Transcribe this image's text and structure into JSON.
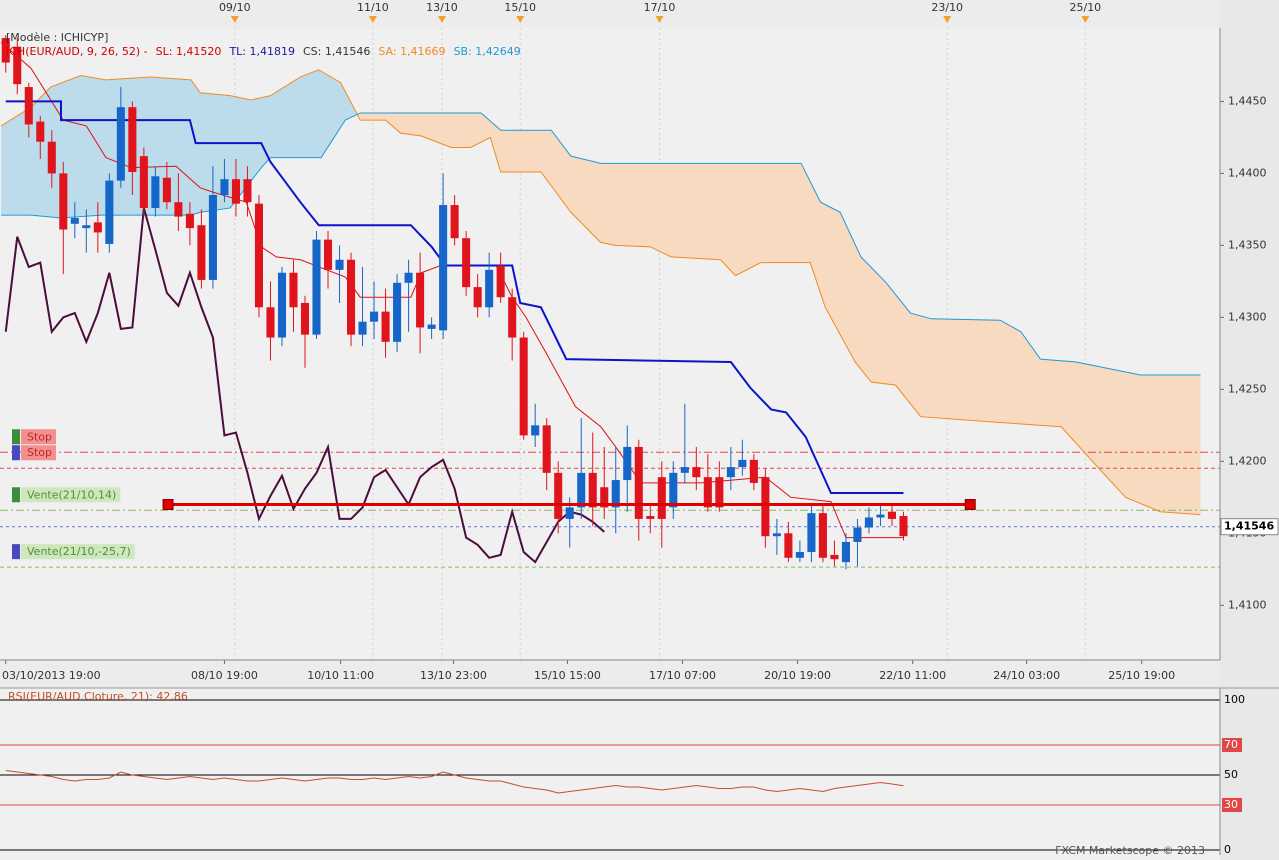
{
  "chart_data": [
    {
      "type": "candlestick",
      "legend_title": "[Modèle : ICHICYP]",
      "legend": [
        {
          "text": "ICH(EUR/AUD, 9, 26, 52) -",
          "color": "#d00000"
        },
        {
          "text": "SL: 1,41520",
          "color": "#d00000"
        },
        {
          "text": "TL: 1,41819",
          "color": "#1a1aa0"
        },
        {
          "text": "CS: 1,41546",
          "color": "#333333"
        },
        {
          "text": "SA: 1,41669",
          "color": "#f08a24"
        },
        {
          "text": "SB: 1,42649",
          "color": "#1e9ad6"
        }
      ],
      "top_labels": [
        {
          "value": 19.9,
          "label": "09/10"
        },
        {
          "value": 31.9,
          "label": "11/10"
        },
        {
          "value": 37.9,
          "label": "13/10"
        },
        {
          "value": 44.7,
          "label": "15/10"
        },
        {
          "value": 56.8,
          "label": "17/10"
        },
        {
          "value": 81.8,
          "label": "23/10"
        },
        {
          "value": 93.8,
          "label": "25/10"
        }
      ],
      "xlim": [
        -0.5,
        105.5
      ],
      "xticks": [
        {
          "value": 0,
          "label": "03/10/2013 19:00"
        },
        {
          "value": 19,
          "label": "08/10 19:00"
        },
        {
          "value": 29.1,
          "label": "10/10 11:00"
        },
        {
          "value": 38.9,
          "label": "13/10 23:00"
        },
        {
          "value": 48.8,
          "label": "15/10 15:00"
        },
        {
          "value": 58.8,
          "label": "17/10 07:00"
        },
        {
          "value": 68.8,
          "label": "20/10 19:00"
        },
        {
          "value": 78.8,
          "label": "22/10 11:00"
        },
        {
          "value": 88.7,
          "label": "24/10 03:00"
        },
        {
          "value": 98.7,
          "label": "25/10 19:00"
        }
      ],
      "ylim": [
        1.4062,
        1.4501
      ],
      "yticks": [
        {
          "value": 1.41,
          "label": "1,4100"
        },
        {
          "value": 1.415,
          "label": "1,4150"
        },
        {
          "value": 1.42,
          "label": "1,4200"
        },
        {
          "value": 1.425,
          "label": "1,4250"
        },
        {
          "value": 1.43,
          "label": "1,4300"
        },
        {
          "value": 1.435,
          "label": "1,4350"
        },
        {
          "value": 1.44,
          "label": "1,4400"
        },
        {
          "value": 1.445,
          "label": "1,4450"
        }
      ],
      "up_color": "#1566c8",
      "down_color": "#e0141c",
      "x": [
        0,
        1,
        2,
        3,
        4,
        5,
        6,
        7,
        8,
        9,
        10,
        11,
        12,
        13,
        14,
        15,
        16,
        17,
        18,
        19,
        20,
        21,
        22,
        23,
        24,
        25,
        26,
        27,
        28,
        29,
        30,
        31,
        32,
        33,
        34,
        35,
        36,
        37,
        38,
        39,
        40,
        41,
        42,
        43,
        44,
        45,
        46,
        47,
        48,
        49,
        50,
        51,
        52,
        53,
        54,
        55,
        56,
        57,
        58,
        59,
        60,
        61,
        62,
        63,
        64,
        65,
        66,
        67,
        68,
        69,
        70,
        71,
        72,
        73,
        74,
        75,
        76,
        77,
        78
      ],
      "open": [
        1.4494,
        1.4488,
        1.446,
        1.4436,
        1.4422,
        1.44,
        1.4365,
        1.4362,
        1.4366,
        1.4351,
        1.4395,
        1.4446,
        1.4412,
        1.4376,
        1.4397,
        1.438,
        1.4372,
        1.4364,
        1.4326,
        1.4385,
        1.4396,
        1.4396,
        1.4379,
        1.4307,
        1.4286,
        1.4331,
        1.431,
        1.4288,
        1.4354,
        1.4333,
        1.434,
        1.4288,
        1.4297,
        1.4304,
        1.4283,
        1.4324,
        1.4331,
        1.4292,
        1.4291,
        1.4378,
        1.4355,
        1.4321,
        1.4307,
        1.4336,
        1.4314,
        1.4286,
        1.4218,
        1.4225,
        1.4192,
        1.416,
        1.4168,
        1.4192,
        1.4182,
        1.4168,
        1.4187,
        1.421,
        1.4162,
        1.4189,
        1.4168,
        1.4192,
        1.4196,
        1.4189,
        1.4189,
        1.4189,
        1.4196,
        1.4201,
        1.4189,
        1.4148,
        1.415,
        1.4133,
        1.4137,
        1.4164,
        1.4135,
        1.413,
        1.4144,
        1.4154,
        1.4161,
        1.4165,
        1.4162
      ],
      "high": [
        1.4496,
        1.4494,
        1.4463,
        1.444,
        1.443,
        1.4408,
        1.438,
        1.4375,
        1.438,
        1.44,
        1.446,
        1.445,
        1.4418,
        1.4405,
        1.4408,
        1.44,
        1.438,
        1.4375,
        1.4405,
        1.441,
        1.441,
        1.4405,
        1.4385,
        1.4325,
        1.4335,
        1.434,
        1.4315,
        1.436,
        1.436,
        1.435,
        1.4345,
        1.4335,
        1.4325,
        1.432,
        1.433,
        1.434,
        1.4345,
        1.43,
        1.44,
        1.4385,
        1.436,
        1.433,
        1.4345,
        1.4345,
        1.432,
        1.429,
        1.424,
        1.423,
        1.42,
        1.4175,
        1.423,
        1.422,
        1.421,
        1.421,
        1.4225,
        1.4215,
        1.417,
        1.42,
        1.42,
        1.424,
        1.421,
        1.4205,
        1.42,
        1.421,
        1.4215,
        1.4205,
        1.4195,
        1.416,
        1.4158,
        1.4145,
        1.417,
        1.417,
        1.4145,
        1.415,
        1.416,
        1.4168,
        1.417,
        1.417,
        1.4165
      ],
      "low": [
        1.447,
        1.4455,
        1.4425,
        1.441,
        1.439,
        1.433,
        1.4355,
        1.4345,
        1.4345,
        1.4345,
        1.439,
        1.4385,
        1.437,
        1.437,
        1.4375,
        1.436,
        1.435,
        1.432,
        1.432,
        1.438,
        1.437,
        1.437,
        1.43,
        1.427,
        1.428,
        1.429,
        1.4265,
        1.4285,
        1.432,
        1.431,
        1.428,
        1.428,
        1.4285,
        1.4272,
        1.4276,
        1.429,
        1.4275,
        1.4285,
        1.4285,
        1.435,
        1.4315,
        1.43,
        1.43,
        1.431,
        1.427,
        1.4215,
        1.421,
        1.418,
        1.415,
        1.414,
        1.416,
        1.4155,
        1.416,
        1.415,
        1.4165,
        1.4145,
        1.415,
        1.414,
        1.416,
        1.4185,
        1.418,
        1.4165,
        1.4165,
        1.418,
        1.419,
        1.418,
        1.414,
        1.4135,
        1.413,
        1.413,
        1.413,
        1.413,
        1.4127,
        1.4125,
        1.4127,
        1.415,
        1.4155,
        1.4155,
        1.4145
      ],
      "close": [
        1.4477,
        1.4462,
        1.4434,
        1.4422,
        1.44,
        1.4361,
        1.4369,
        1.4364,
        1.4359,
        1.4395,
        1.4446,
        1.4401,
        1.4376,
        1.4398,
        1.438,
        1.437,
        1.4362,
        1.4326,
        1.4385,
        1.4396,
        1.4379,
        1.438,
        1.4307,
        1.4286,
        1.4331,
        1.4307,
        1.4288,
        1.4354,
        1.4333,
        1.434,
        1.4288,
        1.4297,
        1.4304,
        1.4283,
        1.4324,
        1.4331,
        1.4293,
        1.4295,
        1.4378,
        1.4355,
        1.4321,
        1.4307,
        1.4333,
        1.4314,
        1.4286,
        1.4218,
        1.4225,
        1.4192,
        1.416,
        1.4168,
        1.4192,
        1.4168,
        1.4168,
        1.4187,
        1.421,
        1.416,
        1.416,
        1.416,
        1.4192,
        1.4196,
        1.4189,
        1.4168,
        1.4168,
        1.4196,
        1.4201,
        1.4185,
        1.4148,
        1.415,
        1.4133,
        1.4137,
        1.4164,
        1.4133,
        1.4132,
        1.4144,
        1.4154,
        1.4161,
        1.4163,
        1.416,
        1.4148
      ],
      "cloud_up": "#bcdcec",
      "cloud_down": "#f7dac0",
      "lines": [
        {
          "color": "#f08a24",
          "width": 1,
          "x": [
            -0.4,
            2.2,
            3.9,
            6.5,
            8.7,
            12.6,
            16.1,
            16.9,
            19.5,
            21.3,
            23,
            25.6,
            27.2,
            29.1,
            30.8,
            33,
            34.3,
            36.1,
            38.7,
            40.4,
            42.1,
            43,
            46.5,
            49.1,
            51.7,
            53,
            56,
            57.8,
            62.1,
            63.4,
            65.6,
            69.9,
            71.2,
            73.8,
            75.2,
            77.3,
            79.5,
            86.4,
            91.7,
            95.1,
            97.3,
            100.3,
            103.8
          ],
          "values": [
            1.4433,
            1.4446,
            1.446,
            1.4468,
            1.4465,
            1.4467,
            1.4465,
            1.4456,
            1.4454,
            1.4451,
            1.4454,
            1.4467,
            1.4472,
            1.4463,
            1.4437,
            1.4437,
            1.4428,
            1.4426,
            1.4418,
            1.4418,
            1.4425,
            1.4401,
            1.4401,
            1.4373,
            1.4352,
            1.435,
            1.4349,
            1.4342,
            1.434,
            1.4329,
            1.4338,
            1.4338,
            1.4307,
            1.4269,
            1.4255,
            1.4253,
            1.4231,
            1.4227,
            1.4224,
            1.4194,
            1.4175,
            1.4165,
            1.4163
          ]
        },
        {
          "color": "#1e9ad6",
          "width": 1,
          "x": [
            -0.4,
            2.2,
            4.8,
            8.3,
            12.6,
            16.1,
            16.9,
            19.5,
            22.2,
            23,
            27.4,
            29.5,
            30.8,
            34.3,
            41.3,
            43,
            47.4,
            49.1,
            51.7,
            69.1,
            70.8,
            72.5,
            74.3,
            76.5,
            78.6,
            80.4,
            86.4,
            88.2,
            89.9,
            93,
            98.6,
            103.8
          ],
          "values": [
            1.4371,
            1.4371,
            1.4369,
            1.4371,
            1.4371,
            1.4371,
            1.4373,
            1.4376,
            1.4404,
            1.4411,
            1.4411,
            1.4437,
            1.4442,
            1.4442,
            1.4442,
            1.443,
            1.443,
            1.4412,
            1.4407,
            1.4407,
            1.438,
            1.4373,
            1.4342,
            1.4324,
            1.4303,
            1.4299,
            1.4298,
            1.429,
            1.4271,
            1.4269,
            1.426,
            1.426
          ]
        },
        {
          "color": "#4a0d3c",
          "width": 2,
          "x": [
            0,
            1,
            2,
            3,
            4,
            5,
            6,
            7,
            8,
            9,
            10,
            11,
            12,
            13,
            14,
            15,
            16,
            17,
            18,
            19,
            20,
            21,
            22,
            23,
            24,
            25,
            26,
            27,
            28,
            29,
            30,
            31,
            32,
            33,
            34,
            35,
            36,
            37,
            38,
            39,
            40,
            41,
            42,
            43,
            44,
            45,
            46,
            47,
            48,
            49,
            50,
            51,
            52
          ],
          "values": [
            1.429,
            1.4356,
            1.4335,
            1.4338,
            1.429,
            1.43,
            1.4303,
            1.4283,
            1.4303,
            1.4331,
            1.4292,
            1.4293,
            1.4376,
            1.4347,
            1.4317,
            1.4308,
            1.4331,
            1.4307,
            1.4286,
            1.4218,
            1.422,
            1.4192,
            1.416,
            1.4176,
            1.419,
            1.4167,
            1.4181,
            1.4192,
            1.421,
            1.416,
            1.416,
            1.4168,
            1.4189,
            1.4194,
            1.4182,
            1.417,
            1.4189,
            1.4196,
            1.4201,
            1.4181,
            1.4147,
            1.4142,
            1.4133,
            1.4135,
            1.4165,
            1.4137,
            1.413,
            1.4144,
            1.4158,
            1.4165,
            1.4163,
            1.4158,
            1.4151
          ]
        },
        {
          "color": "#e01010",
          "width": 1,
          "x": [
            -0.4,
            2.2,
            5,
            7,
            8.7,
            10.9,
            14.8,
            16.9,
            18,
            20.9,
            22.2,
            23.5,
            25.6,
            29.5,
            30.8,
            35.2,
            36.1,
            37.8,
            42.6,
            44,
            45.2,
            46.9,
            49.5,
            51.7,
            53,
            55.2,
            60.4,
            66,
            68.2,
            71.7,
            73,
            78
          ],
          "values": [
            1.4491,
            1.4473,
            1.4437,
            1.4433,
            1.4411,
            1.4404,
            1.4405,
            1.439,
            1.4387,
            1.438,
            1.4349,
            1.4342,
            1.434,
            1.4328,
            1.4314,
            1.4314,
            1.4331,
            1.4336,
            1.4336,
            1.4314,
            1.43,
            1.4276,
            1.4238,
            1.4224,
            1.421,
            1.4185,
            1.4185,
            1.4189,
            1.4175,
            1.4172,
            1.4147,
            1.4147
          ]
        },
        {
          "color": "#0a14c8",
          "width": 2,
          "x": [
            0,
            4.8,
            4.8,
            16,
            16.5,
            22.2,
            23,
            25.6,
            27.2,
            35.2,
            37,
            38.2,
            44,
            44.7,
            46.5,
            48.7,
            63,
            64.7,
            66.5,
            67.8,
            69.5,
            71.7,
            78
          ],
          "values": [
            1.445,
            1.445,
            1.4437,
            1.4437,
            1.4421,
            1.4421,
            1.4408,
            1.438,
            1.4364,
            1.4364,
            1.4349,
            1.4336,
            1.4336,
            1.431,
            1.4307,
            1.4271,
            1.4269,
            1.4251,
            1.4236,
            1.4234,
            1.4217,
            1.4178,
            1.4178
          ]
        }
      ],
      "orders": [
        {
          "label": "Stop",
          "value": 1.42063,
          "color": "#e04848",
          "marker": "#3c8c3c",
          "label_bg": "#f29090",
          "text_color": "#c02828",
          "style": "dashdot"
        },
        {
          "label": "Stop",
          "value": 1.41952,
          "color": "#e04848",
          "marker": "#4848c0",
          "label_bg": "#f29090",
          "text_color": "#c02828",
          "style": "dashed"
        },
        {
          "label": "Vente(21/10,14)",
          "value": 1.4166,
          "color": "#8cb860",
          "marker": "#3c8c3c",
          "label_bg": "#cde8bd",
          "text_color": "#5a8a3a",
          "style": "dashdot"
        },
        {
          "label": "Vente(21/10,-25,7)",
          "value": 1.41265,
          "color": "#8cb860",
          "marker": "#4848c0",
          "label_bg": "#cde8bd",
          "text_color": "#5a8a3a",
          "style": "dashed"
        }
      ],
      "position_line": {
        "value": 1.417,
        "x": [
          14.1,
          83.8
        ],
        "color": "#e00000"
      },
      "price_line": {
        "value": 1.41546,
        "label": "1,41546",
        "color": "#5a7ae0"
      }
    },
    {
      "type": "line",
      "title": "RSI(EUR/AUD.Cloture, 21): 42,86",
      "xlim": [
        -0.5,
        105.5
      ],
      "x": [
        0,
        1,
        2,
        3,
        4,
        5,
        6,
        7,
        8,
        9,
        10,
        11,
        12,
        13,
        14,
        15,
        16,
        17,
        18,
        19,
        20,
        21,
        22,
        23,
        24,
        25,
        26,
        27,
        28,
        29,
        30,
        31,
        32,
        33,
        34,
        35,
        36,
        37,
        38,
        39,
        40,
        41,
        42,
        43,
        44,
        45,
        46,
        47,
        48,
        49,
        50,
        51,
        52,
        53,
        54,
        55,
        56,
        57,
        58,
        59,
        60,
        61,
        62,
        63,
        64,
        65,
        66,
        67,
        68,
        69,
        70,
        71,
        72,
        73,
        74,
        75,
        76,
        77,
        78
      ],
      "values": [
        53,
        52,
        51,
        50,
        49,
        47,
        46,
        47,
        47,
        48,
        52,
        50,
        49,
        48,
        47,
        48,
        49,
        48,
        47,
        48,
        47,
        46,
        46,
        47,
        48,
        47,
        46,
        47,
        48,
        48,
        47,
        47,
        48,
        47,
        48,
        49,
        48,
        49,
        52,
        50,
        48,
        47,
        46,
        46,
        44,
        42,
        41,
        40,
        38,
        39,
        40,
        41,
        42,
        43,
        42,
        42,
        41,
        40,
        41,
        42,
        43,
        42,
        41,
        41,
        42,
        42,
        40,
        39,
        40,
        41,
        40,
        39,
        41,
        42,
        43,
        44,
        45,
        44,
        42.86
      ],
      "color": "#c0502a",
      "ylim": [
        0,
        100
      ],
      "yticks": [
        100,
        70,
        50,
        30,
        0
      ],
      "ytick_colors": [
        "#000000",
        "#e04848",
        "#000000",
        "#e04848",
        "#000000"
      ]
    }
  ],
  "footer": "FXCM Marketscope © 2013"
}
